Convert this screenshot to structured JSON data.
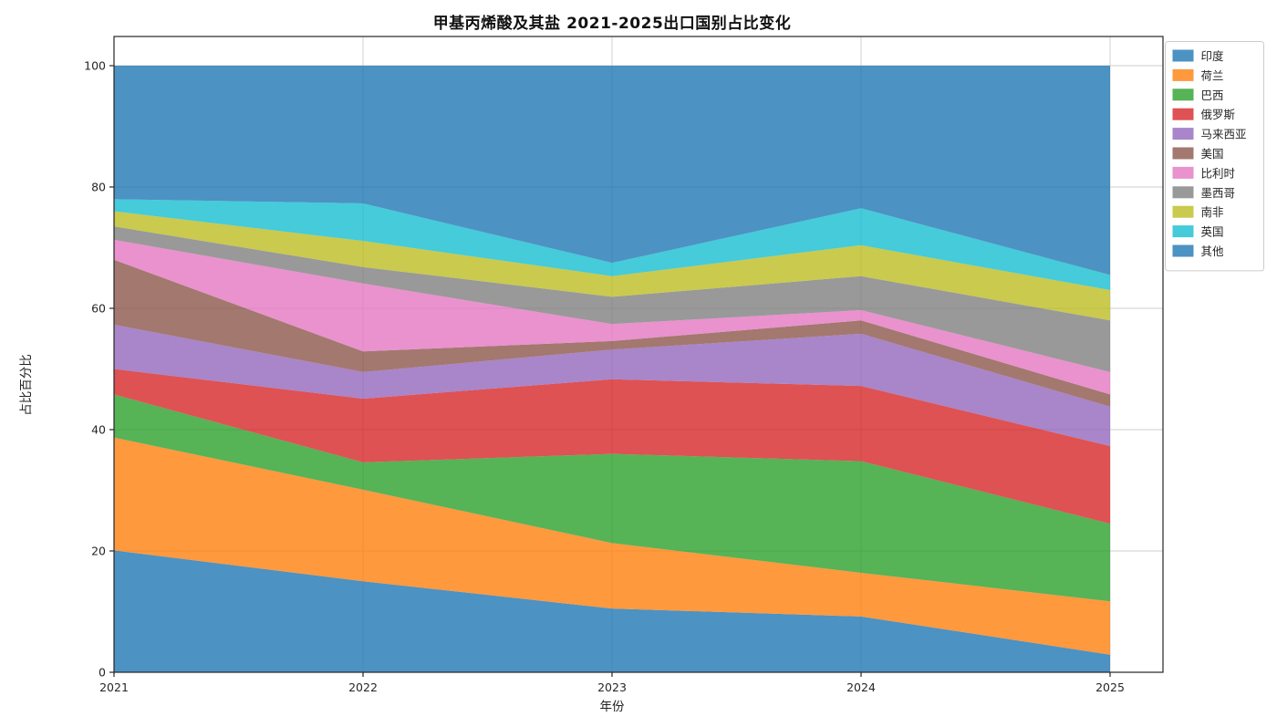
{
  "chart": {
    "title": "甲基丙烯酸及其盐 2021-2025出口国别占比变化",
    "xlabel": "年份",
    "ylabel": "占比百分比"
  },
  "chart_data": {
    "type": "area",
    "stacked": true,
    "percent_stack": true,
    "title": "甲基丙烯酸及其盐 2021-2025出口国别占比变化",
    "xlabel": "年份",
    "ylabel": "占比百分比",
    "x": [
      2021,
      2022,
      2023,
      2024,
      2025
    ],
    "x_tick_labels": [
      "2021",
      "2022",
      "2023",
      "2024",
      "2025"
    ],
    "y_ticks": [
      0,
      20,
      40,
      60,
      80,
      100
    ],
    "ylim": [
      0,
      100
    ],
    "grid": true,
    "fill_alpha": 0.8,
    "grid_color": "#cccccc",
    "spine_color": "#262626",
    "tick_color": "#262626",
    "legend_border_color": "#cccccc",
    "legend_position": "upper-right-outside",
    "series": [
      {
        "name": "印度",
        "color": "#1f77b4",
        "values": [
          20.1,
          15.0,
          10.5,
          9.2,
          2.9
        ]
      },
      {
        "name": "荷兰",
        "color": "#ff7f0e",
        "values": [
          18.6,
          15.1,
          10.8,
          7.2,
          8.8
        ]
      },
      {
        "name": "巴西",
        "color": "#2ca02c",
        "values": [
          7.1,
          4.5,
          14.7,
          18.4,
          12.8
        ]
      },
      {
        "name": "俄罗斯",
        "color": "#d62728",
        "values": [
          4.2,
          10.5,
          12.3,
          12.4,
          12.8
        ]
      },
      {
        "name": "马来西亚",
        "color": "#9467bd",
        "values": [
          7.3,
          4.4,
          4.9,
          8.6,
          6.5
        ]
      },
      {
        "name": "美国",
        "color": "#8c564b",
        "values": [
          10.7,
          3.4,
          1.4,
          2.2,
          2.0
        ]
      },
      {
        "name": "比利时",
        "color": "#e377c2",
        "values": [
          3.3,
          11.2,
          2.8,
          1.7,
          3.7
        ]
      },
      {
        "name": "墨西哥",
        "color": "#7f7f7f",
        "values": [
          2.2,
          2.7,
          4.5,
          5.6,
          8.5
        ]
      },
      {
        "name": "南非",
        "color": "#bcbd22",
        "values": [
          2.5,
          4.3,
          3.4,
          5.1,
          5.0
        ]
      },
      {
        "name": "英国",
        "color": "#17becf",
        "values": [
          2.0,
          6.2,
          2.2,
          6.1,
          2.5
        ]
      },
      {
        "name": "其他",
        "color": "#1f77b4",
        "values": [
          22.0,
          22.7,
          32.5,
          23.5,
          34.5
        ]
      }
    ]
  }
}
